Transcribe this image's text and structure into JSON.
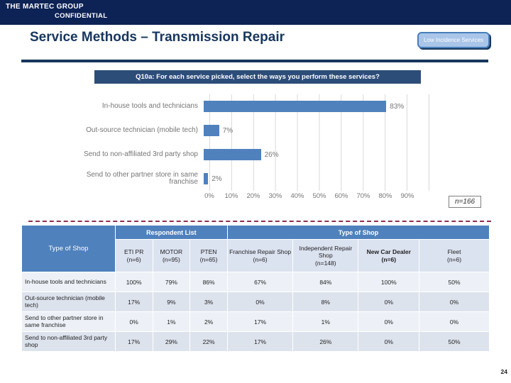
{
  "banner": {
    "line1": "THE MARTEC GROUP",
    "line2": "CONFIDENTIAL"
  },
  "header": {
    "title": "Service Methods – Transmission Repair",
    "badge_label": "Low Incidence Services"
  },
  "question_banner": "Q10a: For each service picked, select the ways you perform these services?",
  "chart_data": {
    "type": "bar",
    "orientation": "horizontal",
    "title": "",
    "categories": [
      "In-house tools and technicians",
      "Out-source technician (mobile tech)",
      "Send to non-affiliated 3rd party shop",
      "Send to other partner store in same franchise"
    ],
    "values": [
      83,
      7,
      26,
      2
    ],
    "value_labels": [
      "83%",
      "7%",
      "26%",
      "2%"
    ],
    "x_ticks": [
      "0%",
      "10%",
      "20%",
      "30%",
      "40%",
      "50%",
      "60%",
      "70%",
      "80%",
      "90%"
    ],
    "xlim": [
      0,
      100
    ],
    "gridlines": true,
    "legend": null,
    "sample_note": "n=166",
    "bar_color": "#4f81bd"
  },
  "table": {
    "corner_header": "Type of Shop",
    "groups": [
      {
        "label": "Respondent List",
        "span": 3
      },
      {
        "label": "Type of Shop",
        "span": 4
      }
    ],
    "columns": [
      {
        "name": "ETI PR",
        "n": "(n=6)"
      },
      {
        "name": "MOTOR",
        "n": "(n=95)"
      },
      {
        "name": "PTEN",
        "n": "(n=65)"
      },
      {
        "name": "Franchise Repair Shop",
        "n": "(n=6)"
      },
      {
        "name": "Independent Repair Shop",
        "n": "(n=148)"
      },
      {
        "name": "New Car Dealer",
        "n": "(n=6)"
      },
      {
        "name": "Fleet",
        "n": "(n=6)"
      }
    ],
    "rows": [
      {
        "label": "In-house tools and technicians",
        "values": [
          "100%",
          "79%",
          "86%",
          "67%",
          "84%",
          "100%",
          "50%"
        ]
      },
      {
        "label": "Out-source technician (mobile tech)",
        "values": [
          "17%",
          "9%",
          "3%",
          "0%",
          "8%",
          "0%",
          "0%"
        ]
      },
      {
        "label": "Send to other partner store in same franchise",
        "values": [
          "0%",
          "1%",
          "2%",
          "17%",
          "1%",
          "0%",
          "0%"
        ]
      },
      {
        "label": "Send to non-affiliated 3rd party shop",
        "values": [
          "17%",
          "29%",
          "22%",
          "17%",
          "26%",
          "0%",
          "50%"
        ]
      }
    ]
  },
  "page_number": "24"
}
